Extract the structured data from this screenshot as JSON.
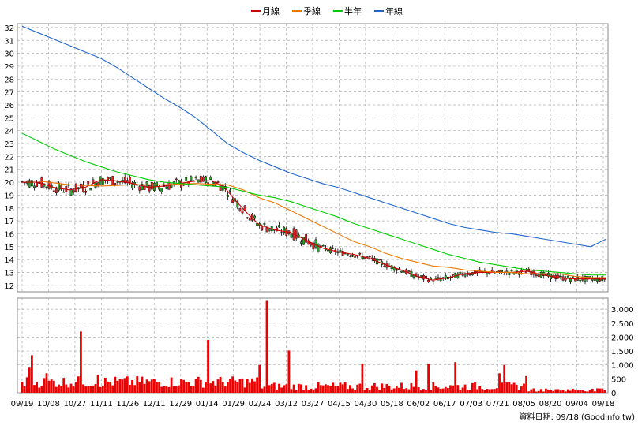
{
  "chart_data": [
    {
      "type": "candlestick",
      "legend": [
        {
          "name": "月線",
          "color": "#cc0000"
        },
        {
          "name": "季線",
          "color": "#ee7700"
        },
        {
          "name": "半年",
          "color": "#00cc00"
        },
        {
          "name": "年線",
          "color": "#2266cc"
        }
      ],
      "legend_position": "top-center",
      "y_ticks": [
        "12",
        "13",
        "14",
        "15",
        "16",
        "17",
        "18",
        "19",
        "20",
        "21",
        "22",
        "23",
        "24",
        "25",
        "26",
        "27",
        "28",
        "29",
        "30",
        "31",
        "32"
      ],
      "ylim": [
        11.5,
        32.3
      ],
      "grid": true,
      "series": [
        {
          "name": "月線",
          "points": [
            [
              0,
              20.0
            ],
            [
              20,
              20.0
            ],
            [
              40,
              19.6
            ],
            [
              60,
              19.4
            ],
            [
              80,
              19.6
            ],
            [
              100,
              20.2
            ],
            [
              120,
              20.1
            ],
            [
              140,
              19.9
            ],
            [
              160,
              19.6
            ],
            [
              180,
              19.7
            ],
            [
              200,
              19.9
            ],
            [
              220,
              20.1
            ],
            [
              240,
              20.1
            ],
            [
              255,
              19.7
            ],
            [
              270,
              18.6
            ],
            [
              285,
              17.6
            ],
            [
              300,
              16.7
            ],
            [
              320,
              16.3
            ],
            [
              340,
              16.1
            ],
            [
              360,
              15.5
            ],
            [
              380,
              14.9
            ],
            [
              400,
              14.6
            ],
            [
              420,
              14.4
            ],
            [
              440,
              14.1
            ],
            [
              460,
              13.6
            ],
            [
              480,
              13.2
            ],
            [
              500,
              12.7
            ],
            [
              520,
              12.4
            ],
            [
              540,
              12.6
            ],
            [
              560,
              12.9
            ],
            [
              580,
              13.0
            ],
            [
              600,
              13.0
            ],
            [
              620,
              13.0
            ],
            [
              640,
              13.1
            ],
            [
              660,
              12.8
            ],
            [
              680,
              12.6
            ],
            [
              700,
              12.5
            ],
            [
              720,
              12.5
            ],
            [
              740,
              12.5
            ]
          ]
        },
        {
          "name": "季線",
          "points": [
            [
              20,
              20.1
            ],
            [
              60,
              19.8
            ],
            [
              100,
              19.7
            ],
            [
              140,
              19.8
            ],
            [
              180,
              19.8
            ],
            [
              220,
              19.9
            ],
            [
              260,
              19.8
            ],
            [
              280,
              19.4
            ],
            [
              300,
              18.8
            ],
            [
              320,
              18.4
            ],
            [
              340,
              17.8
            ],
            [
              360,
              17.2
            ],
            [
              380,
              16.6
            ],
            [
              400,
              16.0
            ],
            [
              420,
              15.4
            ],
            [
              440,
              15.0
            ],
            [
              460,
              14.5
            ],
            [
              480,
              14.1
            ],
            [
              500,
              13.8
            ],
            [
              520,
              13.5
            ],
            [
              540,
              13.4
            ],
            [
              560,
              13.2
            ],
            [
              580,
              13.1
            ],
            [
              600,
              13.0
            ],
            [
              620,
              13.0
            ],
            [
              640,
              12.9
            ],
            [
              660,
              12.9
            ],
            [
              680,
              12.9
            ],
            [
              700,
              12.7
            ],
            [
              720,
              12.6
            ],
            [
              740,
              12.6
            ]
          ]
        },
        {
          "name": "半年",
          "points": [
            [
              0,
              23.8
            ],
            [
              20,
              23.2
            ],
            [
              40,
              22.6
            ],
            [
              60,
              22.1
            ],
            [
              80,
              21.6
            ],
            [
              100,
              21.2
            ],
            [
              120,
              20.8
            ],
            [
              140,
              20.5
            ],
            [
              160,
              20.2
            ],
            [
              180,
              20.0
            ],
            [
              200,
              19.9
            ],
            [
              220,
              19.8
            ],
            [
              240,
              19.7
            ],
            [
              260,
              19.6
            ],
            [
              280,
              19.3
            ],
            [
              300,
              19.0
            ],
            [
              320,
              18.8
            ],
            [
              340,
              18.5
            ],
            [
              360,
              18.1
            ],
            [
              380,
              17.7
            ],
            [
              400,
              17.3
            ],
            [
              420,
              16.8
            ],
            [
              440,
              16.4
            ],
            [
              460,
              16.0
            ],
            [
              480,
              15.6
            ],
            [
              500,
              15.2
            ],
            [
              520,
              14.8
            ],
            [
              540,
              14.4
            ],
            [
              560,
              14.1
            ],
            [
              580,
              13.8
            ],
            [
              600,
              13.6
            ],
            [
              620,
              13.4
            ],
            [
              640,
              13.2
            ],
            [
              660,
              13.1
            ],
            [
              680,
              13.0
            ],
            [
              700,
              12.9
            ],
            [
              720,
              12.8
            ],
            [
              740,
              12.8
            ]
          ]
        },
        {
          "name": "年線",
          "points": [
            [
              0,
              32.1
            ],
            [
              20,
              31.6
            ],
            [
              40,
              31.1
            ],
            [
              60,
              30.6
            ],
            [
              80,
              30.1
            ],
            [
              100,
              29.6
            ],
            [
              120,
              28.9
            ],
            [
              140,
              28.1
            ],
            [
              160,
              27.3
            ],
            [
              180,
              26.5
            ],
            [
              200,
              25.8
            ],
            [
              220,
              25.0
            ],
            [
              240,
              24.0
            ],
            [
              260,
              23.0
            ],
            [
              280,
              22.3
            ],
            [
              300,
              21.7
            ],
            [
              320,
              21.2
            ],
            [
              340,
              20.7
            ],
            [
              360,
              20.3
            ],
            [
              380,
              19.9
            ],
            [
              400,
              19.6
            ],
            [
              420,
              19.2
            ],
            [
              440,
              18.8
            ],
            [
              460,
              18.4
            ],
            [
              480,
              18.0
            ],
            [
              500,
              17.6
            ],
            [
              520,
              17.2
            ],
            [
              540,
              16.8
            ],
            [
              560,
              16.5
            ],
            [
              580,
              16.3
            ],
            [
              600,
              16.1
            ],
            [
              620,
              16.0
            ],
            [
              640,
              15.8
            ],
            [
              660,
              15.6
            ],
            [
              680,
              15.4
            ],
            [
              700,
              15.2
            ],
            [
              720,
              15.0
            ],
            [
              740,
              15.6
            ]
          ]
        }
      ],
      "candles_description": "daily OHLC, red = up, green = down, price from ~20 falling to ~12.3"
    },
    {
      "type": "bar",
      "y_ticks": [
        "0",
        "500",
        "1,000",
        "1,500",
        "2,000",
        "2,500",
        "3,000"
      ],
      "ylim": [
        0,
        3400
      ],
      "x_ticks": [
        "09/19",
        "10/08",
        "10/27",
        "11/11",
        "11/26",
        "12/11",
        "12/29",
        "01/14",
        "01/29",
        "02/24",
        "03/12",
        "03/27",
        "04/15",
        "04/30",
        "05/18",
        "06/02",
        "06/17",
        "07/03",
        "07/21",
        "08/05",
        "08/20",
        "09/04",
        "09/18"
      ],
      "spikes": [
        [
          10,
          900
        ],
        [
          12,
          1350
        ],
        [
          30,
          700
        ],
        [
          75,
          2200
        ],
        [
          95,
          650
        ],
        [
          235,
          1900
        ],
        [
          300,
          1000
        ],
        [
          310,
          3300
        ],
        [
          338,
          1520
        ],
        [
          430,
          1050
        ],
        [
          500,
          800
        ],
        [
          515,
          1050
        ],
        [
          548,
          1100
        ],
        [
          605,
          700
        ],
        [
          612,
          1000
        ],
        [
          640,
          600
        ]
      ],
      "bar_color": "#ee0000"
    }
  ],
  "footer": {
    "date_label": "資料日期: 09/18   (Goodinfo.tw)"
  }
}
